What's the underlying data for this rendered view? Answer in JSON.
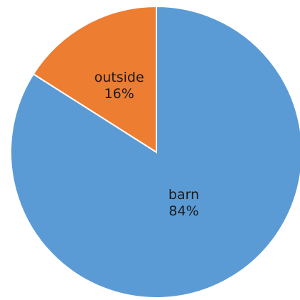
{
  "chart_data": {
    "type": "pie",
    "title": "",
    "legend": "none",
    "start_angle_deg": 0,
    "direction": "clockwise",
    "slices": [
      {
        "label": "barn",
        "value": 84,
        "value_label": "84%",
        "color": "#5B9BD5"
      },
      {
        "label": "outside",
        "value": 16,
        "value_label": "16%",
        "color": "#ED7D31"
      }
    ]
  }
}
